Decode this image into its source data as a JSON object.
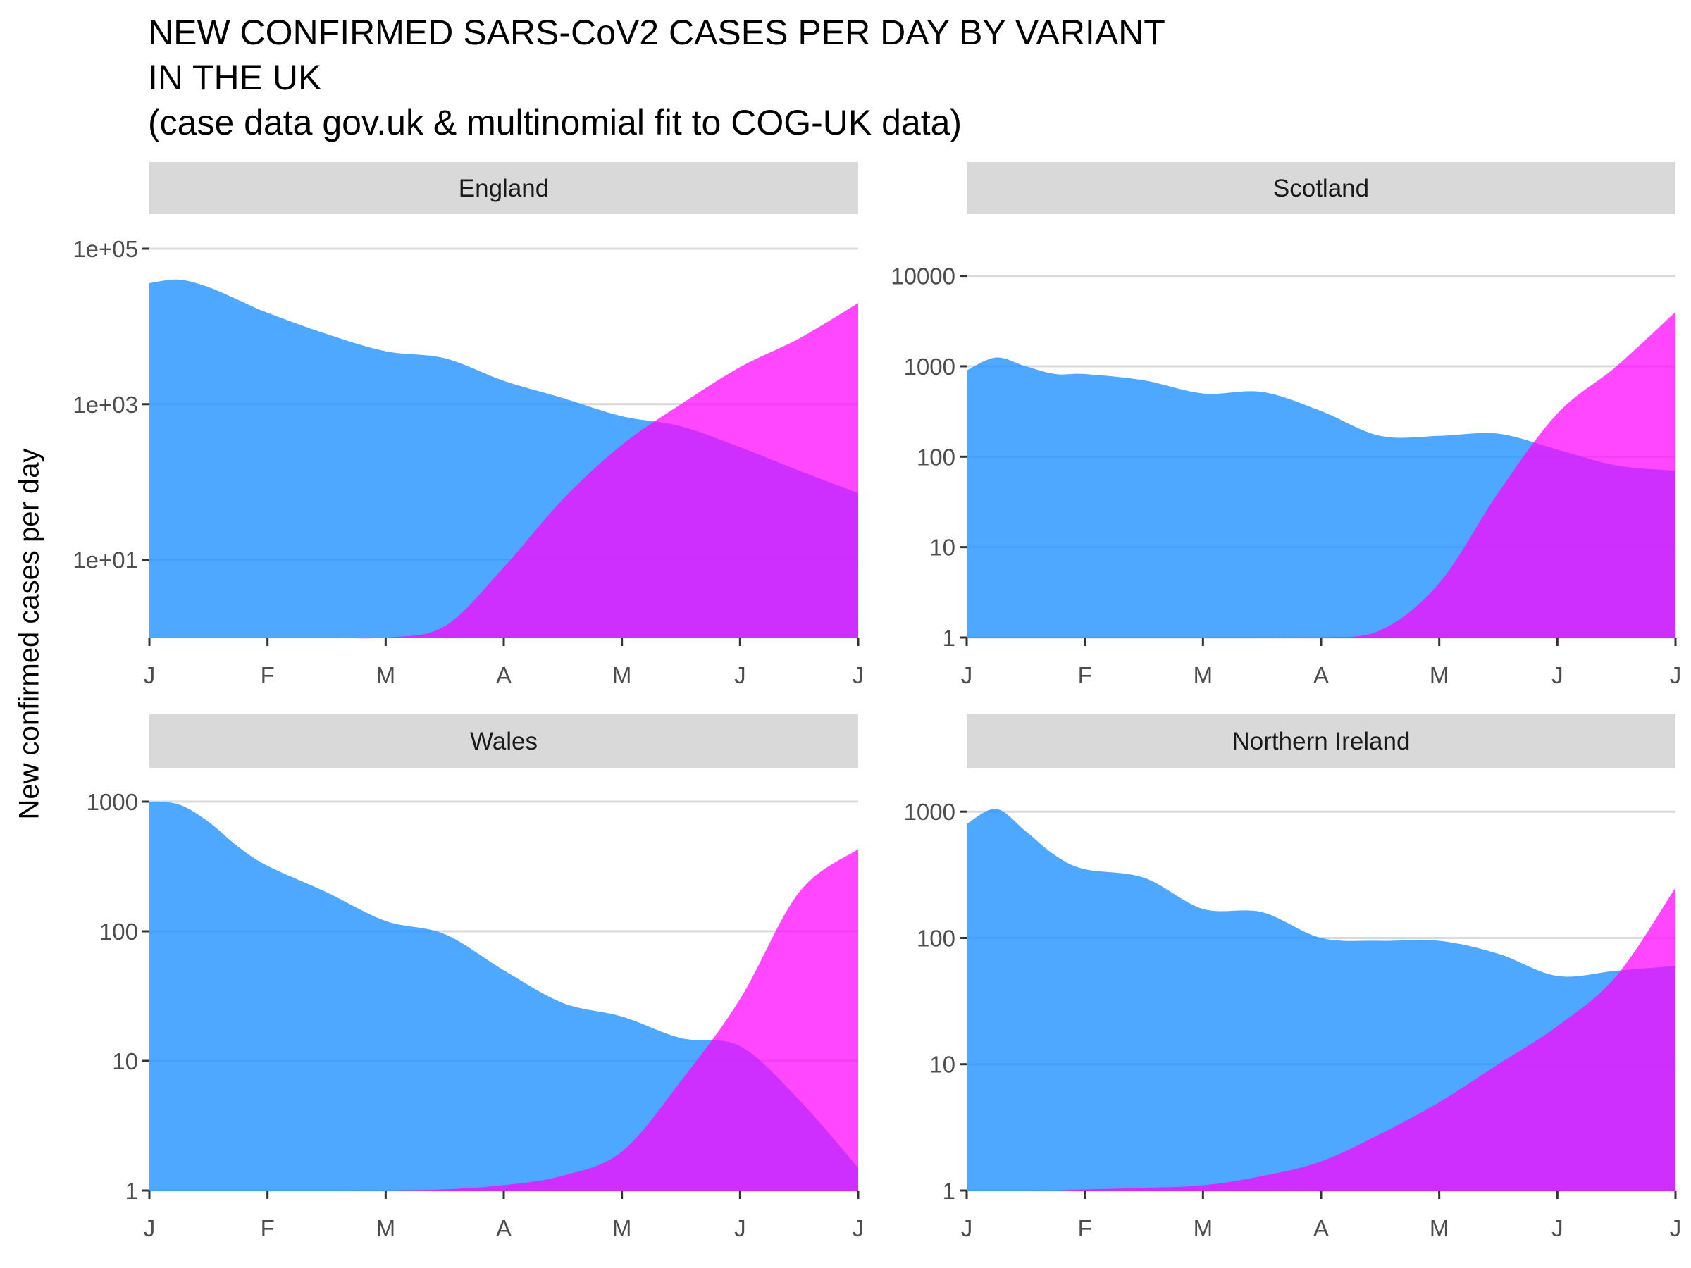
{
  "title": {
    "line1": "NEW CONFIRMED SARS-CoV2 CASES PER DAY BY VARIANT",
    "line2": "IN THE UK",
    "line3": "(case data gov.uk & multinomial fit to COG-UK data)"
  },
  "ylabel": "New confirmed cases per day",
  "colors": {
    "variant_a": "#1E90FF",
    "variant_b": "#FF00FF",
    "overlap": "#BF2AFF",
    "strip": "#D9D9D9",
    "grid": "#D9D9D9"
  },
  "chart_data": [
    {
      "type": "area",
      "facet": "England",
      "title": "England",
      "scale": "log10",
      "ylim": [
        1,
        100000
      ],
      "yticks": [
        10,
        1000,
        100000
      ],
      "ytick_labels": [
        "1e+01",
        "1e+03",
        "1e+05"
      ],
      "x_ticks": [
        "J",
        "F",
        "M",
        "A",
        "M",
        "J",
        "J"
      ],
      "x": [
        0,
        0.25,
        0.5,
        0.75,
        1,
        1.5,
        2,
        2.5,
        3,
        3.5,
        4,
        4.5,
        5,
        5.5,
        6
      ],
      "series": [
        {
          "values": [
            36000,
            40000,
            32000,
            22000,
            15000,
            8000,
            4800,
            3900,
            2000,
            1200,
            700,
            520,
            280,
            140,
            72
          ]
        },
        {
          "values": [
            1,
            1,
            1,
            1,
            1,
            1,
            1,
            1.4,
            8,
            60,
            300,
            1000,
            3000,
            7000,
            20000
          ]
        }
      ]
    },
    {
      "type": "area",
      "facet": "Scotland",
      "title": "Scotland",
      "scale": "log10",
      "ylim": [
        1,
        20000
      ],
      "yticks": [
        1,
        10,
        100,
        1000,
        10000
      ],
      "ytick_labels": [
        "1",
        "10",
        "100",
        "1000",
        "10000"
      ],
      "x_ticks": [
        "J",
        "F",
        "M",
        "A",
        "M",
        "J",
        "J"
      ],
      "x": [
        0,
        0.25,
        0.5,
        0.75,
        1,
        1.5,
        2,
        2.5,
        3,
        3.5,
        4,
        4.5,
        5,
        5.5,
        6
      ],
      "series": [
        {
          "values": [
            900,
            1250,
            1000,
            820,
            820,
            700,
            500,
            520,
            320,
            170,
            170,
            180,
            120,
            80,
            70
          ]
        },
        {
          "values": [
            1,
            1,
            1,
            1,
            1,
            1,
            1,
            1,
            1,
            1.2,
            4,
            40,
            300,
            1000,
            4000
          ]
        }
      ]
    },
    {
      "type": "area",
      "facet": "Wales",
      "title": "Wales",
      "scale": "log10",
      "ylim": [
        1,
        1000
      ],
      "yticks": [
        1,
        10,
        100,
        1000
      ],
      "ytick_labels": [
        "1",
        "10",
        "100",
        "1000"
      ],
      "x_ticks": [
        "J",
        "F",
        "M",
        "A",
        "M",
        "J",
        "J"
      ],
      "x": [
        0,
        0.25,
        0.5,
        0.75,
        1,
        1.5,
        2,
        2.5,
        3,
        3.5,
        4,
        4.5,
        5,
        5.5,
        6
      ],
      "series": [
        {
          "values": [
            1000,
            950,
            700,
            450,
            320,
            200,
            120,
            95,
            50,
            28,
            22,
            15,
            13,
            5,
            1.5
          ]
        },
        {
          "values": [
            1,
            1,
            1,
            1,
            1,
            1,
            1,
            1.02,
            1.1,
            1.3,
            2,
            7,
            30,
            200,
            430
          ]
        }
      ]
    },
    {
      "type": "area",
      "facet": "Northern Ireland",
      "title": "Northern Ireland",
      "scale": "log10",
      "ylim": [
        1,
        1200
      ],
      "yticks": [
        1,
        10,
        100,
        1000
      ],
      "ytick_labels": [
        "1",
        "10",
        "100",
        "1000"
      ],
      "x_ticks": [
        "J",
        "F",
        "M",
        "A",
        "M",
        "J",
        "J"
      ],
      "x": [
        0,
        0.25,
        0.5,
        0.75,
        1,
        1.5,
        2,
        2.5,
        3,
        3.5,
        4,
        4.5,
        5,
        5.5,
        6
      ],
      "series": [
        {
          "values": [
            800,
            1050,
            700,
            450,
            350,
            300,
            170,
            160,
            100,
            95,
            95,
            75,
            50,
            55,
            60
          ]
        },
        {
          "values": [
            1,
            1,
            1,
            1,
            1.02,
            1.05,
            1.1,
            1.3,
            1.7,
            2.8,
            5,
            10,
            20,
            50,
            250
          ]
        }
      ]
    }
  ]
}
